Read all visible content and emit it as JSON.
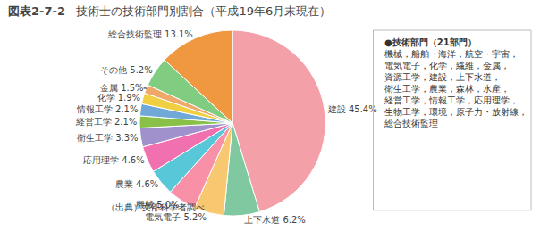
{
  "chart_data": {
    "type": "pie",
    "title": "技術士の技術部門別割合（平成19年6月末現在）",
    "categories": [
      "建設 45.4%",
      "上下水道 6.2%",
      "電気電子 5.2%",
      "機械 5.0%",
      "農業 4.6%",
      "応用理学 4.6%",
      "衛生工学 3.3%",
      "経営工学 2.1%",
      "情報工学 2.1%",
      "化学 1.9%",
      "金属 1.5%",
      "その他 5.2%",
      "総合技術監理 13.1%"
    ],
    "values": [
      45.4,
      6.2,
      5.2,
      5.0,
      4.6,
      4.6,
      3.3,
      2.1,
      2.1,
      1.9,
      1.5,
      5.2,
      13.1
    ],
    "colors": [
      "#F4A0A8",
      "#80C8A0",
      "#F8C870",
      "#F890A8",
      "#58C8D8",
      "#F070B0",
      "#A090CC",
      "#88C048",
      "#70A8D8",
      "#F0D040",
      "#F0A868",
      "#80CC80",
      "#F09840"
    ],
    "annotations": [
      "図表2-7-2",
      "●技術部門（21部門）",
      "機械，船舶・海洋，航空・宇宙，",
      "電気電子，化学，繊維，金属，",
      "資源工学，建設，上下水道，",
      "衛生工学，農業，森林，水産，",
      "経営工学，情報工学，応用理学，",
      "生物工学，環境，原子力・放射線，",
      "総合技術監理",
      "（出典）文部科学者調べ"
    ]
  }
}
